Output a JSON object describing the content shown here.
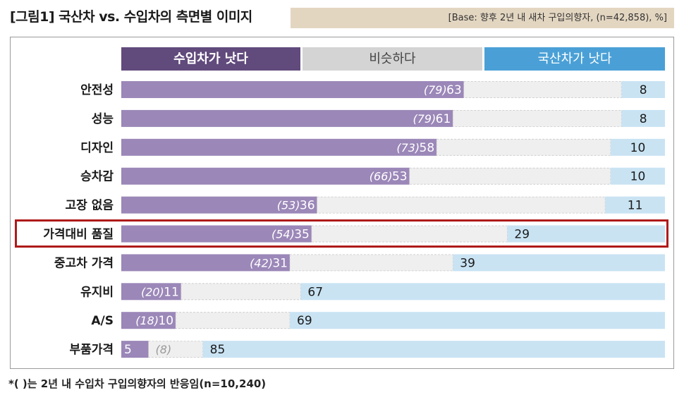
{
  "title": "[그림1] 국산차 vs. 수입차의 측면별 이미지",
  "base_note": "[Base: 향후 2년 내 새차 구입의향자, (n=42,858),   %]",
  "footnote": "*( )는 2년 내 수입차 구입의향자의 반응임(n=10,240)",
  "colors": {
    "import": "#9b87b8",
    "import_header": "#614a7c",
    "similar": "#efefef",
    "domestic": "#c9e3f3",
    "domestic_header": "#4aa0d6",
    "highlight_border": "#b01a1a"
  },
  "chart_data": {
    "type": "bar",
    "orientation": "horizontal",
    "stacked": true,
    "xlim": [
      0,
      100
    ],
    "legend_placement": "top",
    "categories": [
      "안전성",
      "성능",
      "디자인",
      "승차감",
      "고장 없음",
      "가격대비 품질",
      "중고차 가격",
      "유지비",
      "A/S",
      "부품가격"
    ],
    "series": [
      {
        "name": "수입차가 낫다",
        "values": [
          63,
          61,
          58,
          53,
          36,
          35,
          31,
          11,
          10,
          5
        ]
      },
      {
        "name": "비슷하다",
        "values": [
          29,
          31,
          32,
          37,
          53,
          36,
          30,
          22,
          21,
          10
        ]
      },
      {
        "name": "국산차가 낫다",
        "values": [
          8,
          8,
          10,
          10,
          11,
          29,
          39,
          67,
          69,
          85
        ]
      }
    ],
    "import_buyer_values": [
      79,
      79,
      73,
      66,
      53,
      54,
      42,
      20,
      18,
      8
    ],
    "import_buyer_labels": [
      "(79)",
      "(79)",
      "(73)",
      "(66)",
      "(53)",
      "(54)",
      "(42)",
      "(20)",
      "(18)",
      "(8)"
    ],
    "highlighted_category": "가격대비 품질"
  }
}
